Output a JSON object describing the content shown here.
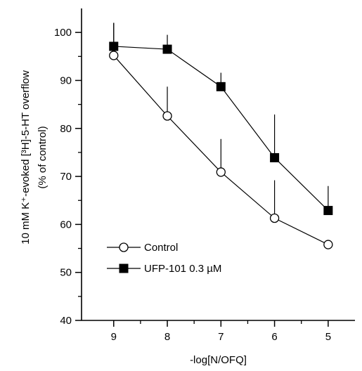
{
  "chart_data": {
    "type": "line",
    "title": "",
    "xlabel": "-log[N/OFQ]",
    "ylabel_line1": "10 mM K⁺-evoked [³H]-5-HT overflow",
    "ylabel_line2": "(% of control)",
    "x_reversed": true,
    "xlim": [
      9.6,
      4.5
    ],
    "ylim": [
      40,
      105
    ],
    "x_ticks": [
      9,
      8,
      7,
      6,
      5
    ],
    "y_ticks": [
      40,
      50,
      60,
      70,
      80,
      90,
      100
    ],
    "grid": false,
    "legend_position": "bottom-left",
    "series": [
      {
        "name": "Control",
        "marker": "open-circle",
        "x": [
          9,
          8,
          7,
          6,
          5
        ],
        "y": [
          95.2,
          82.6,
          70.9,
          61.3,
          55.8
        ],
        "error_up": [
          6.8,
          6.1,
          6.9,
          7.9,
          0
        ]
      },
      {
        "name": "UFP-101 0.3 µM",
        "marker": "filled-square",
        "x": [
          9,
          8,
          7,
          6,
          5
        ],
        "y": [
          97.1,
          96.5,
          88.7,
          73.9,
          62.9
        ],
        "error_up": [
          4.9,
          3.0,
          2.9,
          9.0,
          5.1
        ]
      }
    ]
  }
}
